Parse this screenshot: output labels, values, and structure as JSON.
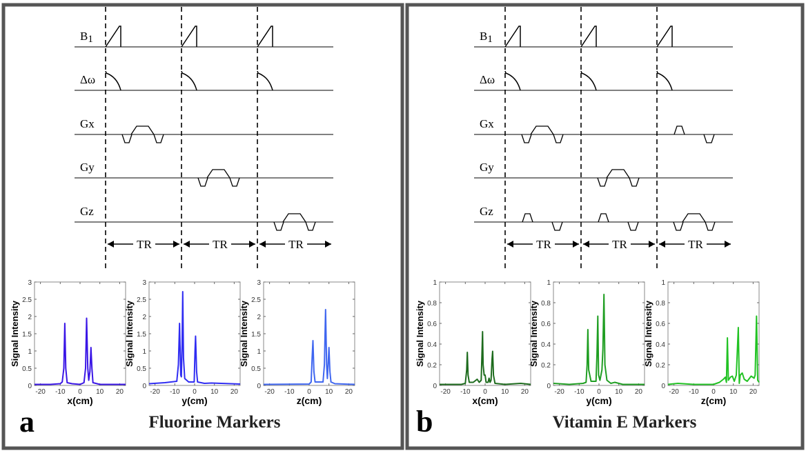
{
  "panels": [
    {
      "label": "a",
      "title": "Fluorine Markers",
      "diagram": {
        "channels": [
          "B1",
          "Δω",
          "Gx",
          "Gy",
          "Gz"
        ],
        "tr_label": "TR",
        "gradient_events": [
          {
            "channel": "Gx",
            "tr": 1,
            "type": "readout"
          },
          {
            "channel": "Gy",
            "tr": 2,
            "type": "readout"
          },
          {
            "channel": "Gz",
            "tr": 3,
            "type": "readout"
          }
        ]
      },
      "plots": [
        {
          "type": "line",
          "xlabel": "x(cm)",
          "ylabel": "Signal Intensity",
          "xlim": [
            -23,
            23
          ],
          "ylim": [
            0,
            3
          ],
          "xticks": [
            -20,
            -10,
            0,
            10,
            20
          ],
          "yticks": [
            0,
            0.5,
            1,
            1.5,
            2,
            2.5,
            3
          ],
          "color": "#3a16e6",
          "points": [
            [
              -23,
              0.03
            ],
            [
              -15,
              0.03
            ],
            [
              -10,
              0.05
            ],
            [
              -9,
              0.1
            ],
            [
              -8.2,
              0.5
            ],
            [
              -7.7,
              1.8
            ],
            [
              -7.2,
              0.5
            ],
            [
              -6.5,
              0.08
            ],
            [
              -4,
              0.05
            ],
            [
              0,
              0.03
            ],
            [
              2,
              0.08
            ],
            [
              2.8,
              0.5
            ],
            [
              3.3,
              1.95
            ],
            [
              3.9,
              0.5
            ],
            [
              4.4,
              0.15
            ],
            [
              5,
              0.4
            ],
            [
              5.5,
              1.1
            ],
            [
              6,
              0.5
            ],
            [
              6.5,
              0.08
            ],
            [
              10,
              0.03
            ],
            [
              23,
              0.03
            ]
          ]
        },
        {
          "type": "line",
          "xlabel": "y(cm)",
          "ylabel": "Signal Intensity",
          "xlim": [
            -23,
            23
          ],
          "ylim": [
            0,
            3
          ],
          "xticks": [
            -20,
            -10,
            0,
            10,
            20
          ],
          "yticks": [
            0,
            0.5,
            1,
            1.5,
            2,
            2.5,
            3
          ],
          "color": "#2f2cf2",
          "points": [
            [
              -23,
              0.05
            ],
            [
              -15,
              0.08
            ],
            [
              -12,
              0.1
            ],
            [
              -9,
              0.12
            ],
            [
              -8.2,
              0.6
            ],
            [
              -7.6,
              1.8
            ],
            [
              -7,
              0.3
            ],
            [
              -6.7,
              0.25
            ],
            [
              -6.3,
              1.2
            ],
            [
              -6,
              2.72
            ],
            [
              -5.6,
              0.8
            ],
            [
              -5,
              0.2
            ],
            [
              -3,
              0.1
            ],
            [
              -0.2,
              0.1
            ],
            [
              0.2,
              1.0
            ],
            [
              0.5,
              1.43
            ],
            [
              1,
              0.4
            ],
            [
              1.5,
              0.1
            ],
            [
              5,
              0.06
            ],
            [
              8.5,
              0.07
            ],
            [
              23,
              0.04
            ]
          ]
        },
        {
          "type": "line",
          "xlabel": "z(cm)",
          "ylabel": "Signal Intensity",
          "xlim": [
            -23,
            23
          ],
          "ylim": [
            0,
            3
          ],
          "xticks": [
            -20,
            -10,
            0,
            10,
            20
          ],
          "yticks": [
            0,
            0.5,
            1,
            1.5,
            2,
            2.5,
            3
          ],
          "color": "#3f66f0",
          "points": [
            [
              -23,
              0.03
            ],
            [
              0,
              0.04
            ],
            [
              1,
              0.1
            ],
            [
              1.5,
              0.8
            ],
            [
              1.9,
              1.3
            ],
            [
              2.4,
              0.4
            ],
            [
              3,
              0.1
            ],
            [
              4,
              0.1
            ],
            [
              7,
              0.1
            ],
            [
              7.7,
              0.6
            ],
            [
              8.3,
              2.2
            ],
            [
              8.8,
              0.6
            ],
            [
              9.2,
              0.2
            ],
            [
              9.6,
              0.6
            ],
            [
              10,
              1.1
            ],
            [
              10.5,
              0.4
            ],
            [
              11,
              0.1
            ],
            [
              13,
              0.05
            ],
            [
              23,
              0.03
            ]
          ]
        }
      ]
    },
    {
      "label": "b",
      "title": "Vitamin E Markers",
      "diagram": {
        "channels": [
          "B1",
          "Δω",
          "Gx",
          "Gy",
          "Gz"
        ],
        "tr_label": "TR",
        "gradient_events": [
          {
            "channel": "Gx",
            "tr": 1,
            "type": "readout"
          },
          {
            "channel": "Gz",
            "tr": 1,
            "type": "crusher"
          },
          {
            "channel": "Gy",
            "tr": 2,
            "type": "readout"
          },
          {
            "channel": "Gz",
            "tr": 2,
            "type": "crusher"
          },
          {
            "channel": "Gx",
            "tr": 3,
            "type": "crusher"
          },
          {
            "channel": "Gz",
            "tr": 3,
            "type": "readout"
          }
        ]
      },
      "plots": [
        {
          "type": "line",
          "xlabel": "x(cm)",
          "ylabel": "Signal Intensity",
          "xlim": [
            -23,
            23
          ],
          "ylim": [
            0,
            1
          ],
          "xticks": [
            -20,
            -10,
            0,
            10,
            20
          ],
          "yticks": [
            0,
            0.2,
            0.4,
            0.6,
            0.8,
            1
          ],
          "color": "#1d6b1d",
          "points": [
            [
              -23,
              0.01
            ],
            [
              -12,
              0.01
            ],
            [
              -10,
              0.02
            ],
            [
              -9.3,
              0.15
            ],
            [
              -9,
              0.32
            ],
            [
              -8.6,
              0.1
            ],
            [
              -8,
              0.03
            ],
            [
              -6,
              0.03
            ],
            [
              -4,
              0.06
            ],
            [
              -3,
              0.03
            ],
            [
              -2,
              0.05
            ],
            [
              -1.6,
              0.3
            ],
            [
              -1.3,
              0.52
            ],
            [
              -1,
              0.2
            ],
            [
              -0.5,
              0.1
            ],
            [
              0,
              0.1
            ],
            [
              0.5,
              0.03
            ],
            [
              1.5,
              0.03
            ],
            [
              2,
              0.07
            ],
            [
              2.5,
              0.03
            ],
            [
              3,
              0.05
            ],
            [
              3.5,
              0.25
            ],
            [
              3.8,
              0.33
            ],
            [
              4.2,
              0.1
            ],
            [
              5,
              0.02
            ],
            [
              10,
              0.01
            ],
            [
              18,
              0.02
            ],
            [
              23,
              0.01
            ]
          ]
        },
        {
          "type": "line",
          "xlabel": "y(cm)",
          "ylabel": "Signal Intensity",
          "xlim": [
            -23,
            23
          ],
          "ylim": [
            0,
            1
          ],
          "xticks": [
            -20,
            -10,
            0,
            10,
            20
          ],
          "yticks": [
            0,
            0.2,
            0.4,
            0.6,
            0.8,
            1
          ],
          "color": "#1f9e22",
          "points": [
            [
              -23,
              0.02
            ],
            [
              -15,
              0.01
            ],
            [
              -8,
              0.02
            ],
            [
              -6.5,
              0.03
            ],
            [
              -6,
              0.2
            ],
            [
              -5.6,
              0.54
            ],
            [
              -5.2,
              0.15
            ],
            [
              -4,
              0.04
            ],
            [
              -1.5,
              0.04
            ],
            [
              -1,
              0.3
            ],
            [
              -0.6,
              0.67
            ],
            [
              -0.2,
              0.1
            ],
            [
              0.5,
              0.05
            ],
            [
              1.5,
              0.15
            ],
            [
              2,
              0.35
            ],
            [
              2.5,
              0.88
            ],
            [
              3,
              0.2
            ],
            [
              4,
              0.05
            ],
            [
              6,
              0.02
            ],
            [
              8,
              0.03
            ],
            [
              12,
              0.01
            ],
            [
              23,
              0.01
            ]
          ]
        },
        {
          "type": "line",
          "xlabel": "z(cm)",
          "ylabel": "Signal Intensity",
          "xlim": [
            -23,
            23
          ],
          "ylim": [
            0,
            1
          ],
          "xticks": [
            -20,
            -10,
            0,
            10,
            20
          ],
          "yticks": [
            0,
            0.2,
            0.4,
            0.6,
            0.8,
            1
          ],
          "color": "#22c224",
          "points": [
            [
              -23,
              0.01
            ],
            [
              -18,
              0.02
            ],
            [
              -10,
              0.01
            ],
            [
              0,
              0.01
            ],
            [
              3,
              0.03
            ],
            [
              5,
              0.06
            ],
            [
              6,
              0.08
            ],
            [
              6.5,
              0.03
            ],
            [
              7,
              0.46
            ],
            [
              7.5,
              0.05
            ],
            [
              8.5,
              0.08
            ],
            [
              9.5,
              0.09
            ],
            [
              10.5,
              0.04
            ],
            [
              11.5,
              0.1
            ],
            [
              12.5,
              0.56
            ],
            [
              13,
              0.02
            ],
            [
              13.5,
              0.1
            ],
            [
              14.5,
              0.12
            ],
            [
              15.5,
              0.06
            ],
            [
              17,
              0.04
            ],
            [
              19,
              0.09
            ],
            [
              20.5,
              0.07
            ],
            [
              21,
              0.1
            ],
            [
              21.7,
              0.67
            ],
            [
              22.3,
              0.05
            ],
            [
              23,
              0.03
            ]
          ]
        }
      ]
    }
  ]
}
